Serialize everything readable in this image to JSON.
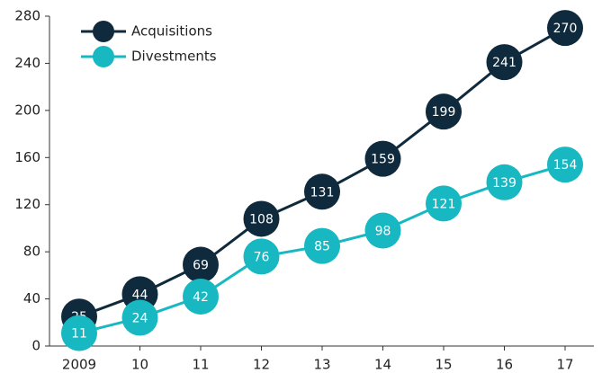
{
  "chart_data": {
    "type": "line",
    "categories": [
      "2009",
      "10",
      "11",
      "12",
      "13",
      "14",
      "15",
      "16",
      "17"
    ],
    "series": [
      {
        "name": "Acquisitions",
        "color": "#0f2a3c",
        "values": [
          25,
          44,
          69,
          108,
          131,
          159,
          199,
          241,
          270
        ]
      },
      {
        "name": "Divestments",
        "color": "#17b8c1",
        "values": [
          11,
          24,
          42,
          76,
          85,
          98,
          121,
          139,
          154
        ]
      }
    ],
    "ylim": [
      0,
      280
    ],
    "yticks": [
      0,
      40,
      80,
      120,
      160,
      200,
      240,
      280
    ],
    "grid": false,
    "legend": "top-left"
  }
}
